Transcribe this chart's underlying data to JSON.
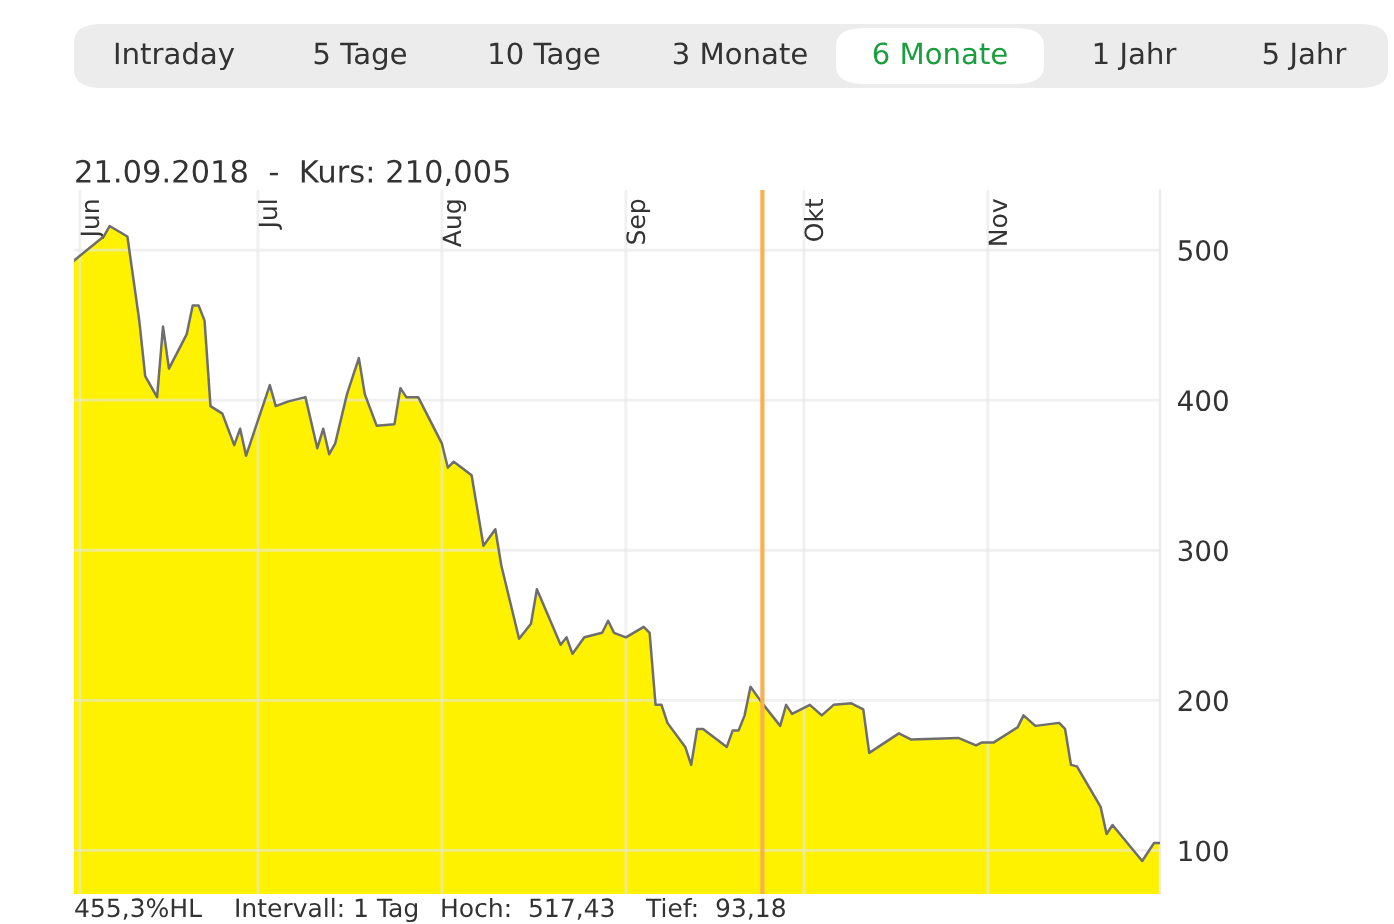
{
  "chart_data": {
    "type": "area",
    "title": "21.09.2018  -  Kurs: 210,005",
    "x": [
      "2018-05-31",
      "2018-06-05",
      "2018-06-06",
      "2018-06-09",
      "2018-06-11",
      "2018-06-12",
      "2018-06-14",
      "2018-06-15",
      "2018-06-16",
      "2018-06-19",
      "2018-06-20",
      "2018-06-21",
      "2018-06-22",
      "2018-06-23",
      "2018-06-25",
      "2018-06-27",
      "2018-06-28",
      "2018-06-29",
      "2018-07-03",
      "2018-07-04",
      "2018-07-06",
      "2018-07-09",
      "2018-07-11",
      "2018-07-12",
      "2018-07-13",
      "2018-07-14",
      "2018-07-16",
      "2018-07-18",
      "2018-07-19",
      "2018-07-21",
      "2018-07-24",
      "2018-07-25",
      "2018-07-26",
      "2018-07-28",
      "2018-08-01",
      "2018-08-02",
      "2018-08-03",
      "2018-08-06",
      "2018-08-08",
      "2018-08-10",
      "2018-08-11",
      "2018-08-14",
      "2018-08-16",
      "2018-08-17",
      "2018-08-21",
      "2018-08-22",
      "2018-08-23",
      "2018-08-25",
      "2018-08-28",
      "2018-08-29",
      "2018-08-30",
      "2018-09-01",
      "2018-09-04",
      "2018-09-05",
      "2018-09-06",
      "2018-09-07",
      "2018-09-08",
      "2018-09-11",
      "2018-09-12",
      "2018-09-13",
      "2018-09-14",
      "2018-09-18",
      "2018-09-19",
      "2018-09-20",
      "2018-09-21",
      "2018-09-22",
      "2018-09-24",
      "2018-09-27",
      "2018-09-28",
      "2018-09-29",
      "2018-10-02",
      "2018-10-04",
      "2018-10-06",
      "2018-10-09",
      "2018-10-11",
      "2018-10-12",
      "2018-10-17",
      "2018-10-19",
      "2018-10-27",
      "2018-10-30",
      "2018-10-31",
      "2018-11-02",
      "2018-11-06",
      "2018-11-07",
      "2018-11-09",
      "2018-11-13",
      "2018-11-14",
      "2018-11-15",
      "2018-11-16",
      "2018-11-20",
      "2018-11-21",
      "2018-11-22",
      "2018-11-27",
      "2018-11-29",
      "2018-11-30"
    ],
    "series": [
      {
        "color": "#fff200",
        "values": [
          493,
          509,
          516,
          509,
          453,
          416,
          402,
          449,
          421,
          444,
          463,
          463,
          453,
          396,
          391,
          370,
          381,
          363,
          410,
          396,
          399,
          402,
          368,
          381,
          364,
          371,
          404,
          428,
          404,
          383,
          384,
          408,
          402,
          402,
          371,
          355,
          359,
          350,
          303,
          314,
          290,
          241,
          251,
          274,
          237,
          242,
          231,
          242,
          245,
          253,
          245,
          242,
          249,
          245,
          197,
          197,
          185,
          169,
          157,
          181,
          181,
          169,
          180,
          180,
          190,
          209,
          198,
          183,
          197,
          191,
          197,
          190,
          197,
          198,
          194,
          165,
          178,
          174,
          175,
          170,
          172,
          172,
          182,
          190,
          183,
          185,
          181,
          157,
          156,
          129,
          111,
          117,
          93,
          105,
          105
        ]
      }
    ],
    "xlim": [
      "2018-05-31",
      "2018-11-30"
    ],
    "xticks": [
      {
        "value": "2018-06-01",
        "label": "Jun"
      },
      {
        "value": "2018-07-01",
        "label": "Jul"
      },
      {
        "value": "2018-08-01",
        "label": "Aug"
      },
      {
        "value": "2018-09-01",
        "label": "Sep"
      },
      {
        "value": "2018-10-01",
        "label": "Okt"
      },
      {
        "value": "2018-11-01",
        "label": "Nov"
      }
    ],
    "ylim": [
      71,
      540
    ],
    "yticks": [
      100,
      200,
      300,
      400,
      500
    ],
    "grid": true,
    "ref_lines": [
      {
        "axis": "x",
        "value": "2018-09-24",
        "color": "#f9b04f"
      }
    ],
    "annotations": [
      "Intraday",
      "5 Tage",
      "10 Tage",
      "3 Monate",
      "6 Monate",
      "1 Jahr",
      "5 Jahr",
      "455,3%HL",
      "Intervall: 1 Tag",
      "Hoch:  517,43",
      "Tief:  93,18"
    ]
  }
}
